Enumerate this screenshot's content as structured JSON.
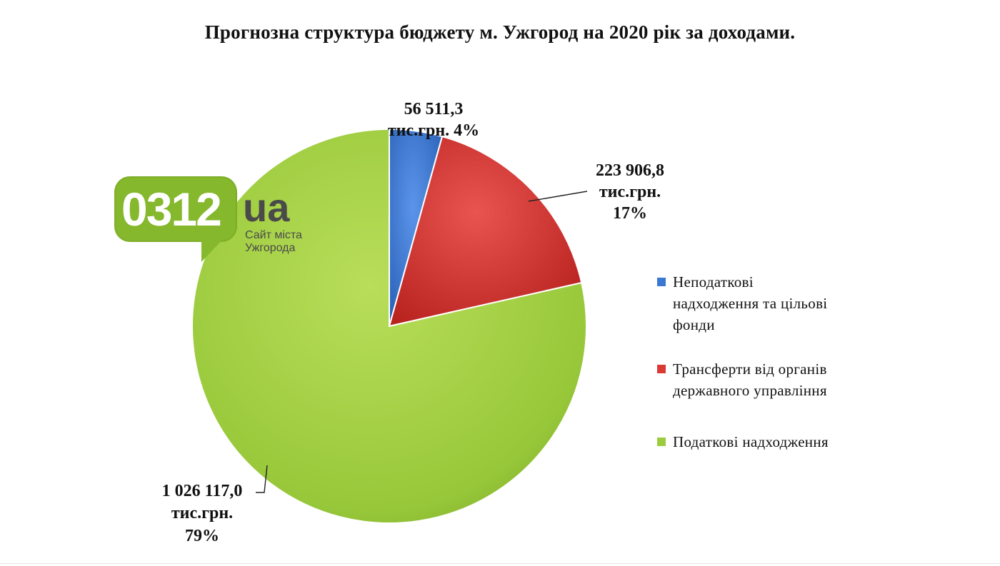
{
  "chart_data": {
    "type": "pie",
    "title": "Прогнозна структура бюджету м. Ужгород на 2020 рік за доходами.",
    "series": [
      {
        "name": "Неподаткові надходження та цільові фонди",
        "value": 56511.3,
        "value_label": "56 511,3",
        "unit_label": "тис.грн.",
        "percent_label": "4%",
        "color": "#3a78d4"
      },
      {
        "name": "Трансферти від органів державного управління",
        "value": 223906.8,
        "value_label": "223 906,8",
        "unit_label": "тис.грн.",
        "percent_label": "17%",
        "color": "#d93a36"
      },
      {
        "name": "Податкові надходження",
        "value": 1026117.0,
        "value_label": "1 026 117,0",
        "unit_label": "тис.грн.",
        "percent_label": "79%",
        "color": "#9ccc3d"
      }
    ],
    "legend_position": "right"
  },
  "legend": {
    "items": [
      {
        "lines": [
          "Неподаткові",
          "надходження та цільові",
          "фонди"
        ]
      },
      {
        "lines": [
          "Трансферти від органів",
          "державного управління"
        ]
      },
      {
        "lines": [
          "Податкові надходження"
        ]
      }
    ]
  },
  "logo": {
    "number": "0312",
    "suffix": "ua",
    "caption_line1": "Сайт міста",
    "caption_line2": "Ужгорода"
  }
}
